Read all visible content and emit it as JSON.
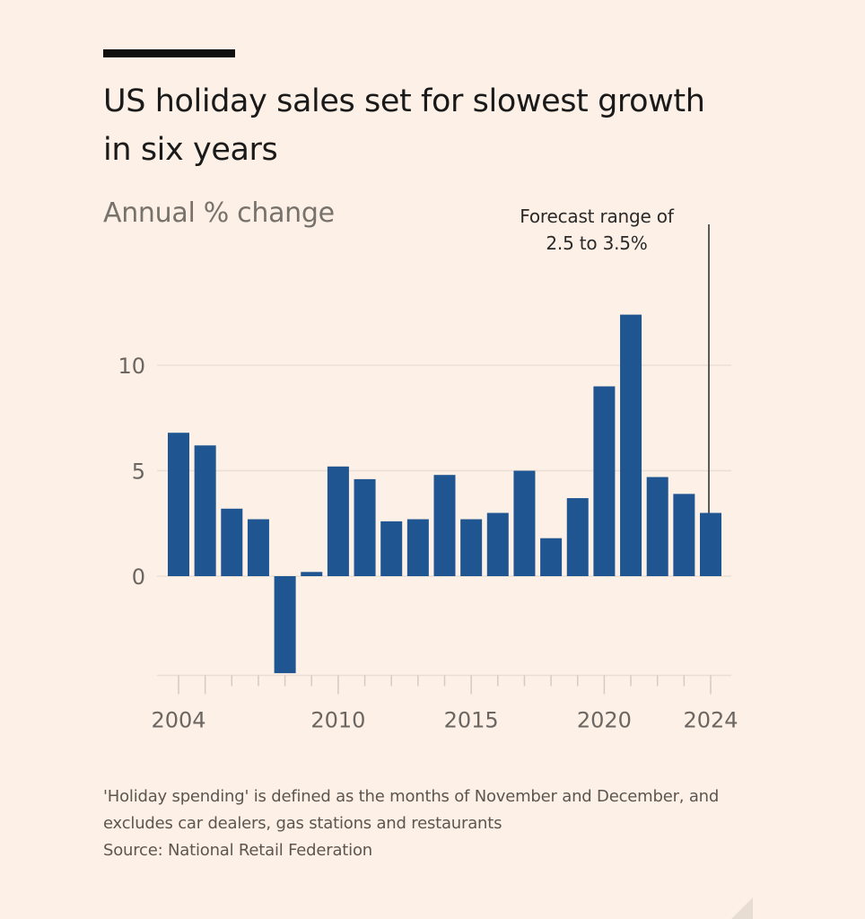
{
  "header": {
    "title": "US holiday sales set for slowest growth in six years",
    "subtitle": "Annual % change"
  },
  "annotation": {
    "line1": "Forecast range of",
    "line2": "2.5 to 3.5%"
  },
  "footer": {
    "note": "'Holiday spending' is defined as the months of November and December, and excludes car dealers, gas stations and restaurants",
    "source": "Source: National Retail Federation"
  },
  "colors": {
    "bar": "#1f5591",
    "background": "#fdf0e6",
    "gridline": "#eadfd5",
    "tick_label": "#6b6661",
    "annotation_line": "#5a5a5a"
  },
  "chart_data": {
    "type": "bar",
    "title": "US holiday sales set for slowest growth in six years",
    "subtitle": "Annual % change",
    "xlabel": "",
    "ylabel": "Annual % change",
    "categories": [
      "2004",
      "2005",
      "2006",
      "2007",
      "2008",
      "2009",
      "2010",
      "2011",
      "2012",
      "2013",
      "2014",
      "2015",
      "2016",
      "2017",
      "2018",
      "2019",
      "2020",
      "2021",
      "2022",
      "2023",
      "2024"
    ],
    "values": [
      6.8,
      6.2,
      3.2,
      2.7,
      -4.6,
      0.2,
      5.2,
      4.6,
      2.6,
      2.7,
      4.8,
      2.7,
      3.0,
      5.0,
      1.8,
      3.7,
      9.0,
      12.4,
      4.7,
      3.9,
      3.0
    ],
    "ylim": [
      -4.7,
      14
    ],
    "yticks": [
      0,
      5,
      10
    ],
    "xtick_labels": [
      "2004",
      "2010",
      "2015",
      "2020",
      "2024"
    ],
    "major_ticks": [
      "2004",
      "2005",
      "2010",
      "2015",
      "2020",
      "2024"
    ],
    "grid": true,
    "annotations": [
      {
        "category": "2024",
        "text": "Forecast range of 2.5 to 3.5%"
      }
    ],
    "notes": "'Holiday spending' is defined as the months of November and December, and excludes car dealers, gas stations and restaurants",
    "source": "Source: National Retail Federation"
  }
}
